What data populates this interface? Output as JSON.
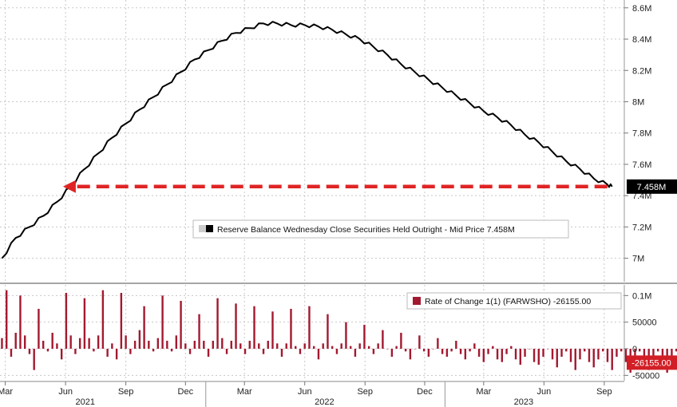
{
  "chart_data": [
    {
      "type": "line",
      "legend": {
        "label": "Reserve Balance Wednesday Close Securities Held Outright - Mid Price 7.458M",
        "placement": "center-bottom"
      },
      "last_value_tag": "7.458M",
      "y_ticks": [
        "7M",
        "7.2M",
        "7.4M",
        "7.6M",
        "7.8M",
        "8M",
        "8.2M",
        "8.4M",
        "8.6M"
      ],
      "ylim": [
        6.85,
        8.65
      ],
      "y_unit": "millions",
      "grid": true,
      "annotation": {
        "type": "dashed-arrow",
        "color": "#e02424",
        "level": 7.458,
        "from": "2023-09-13",
        "to": "2021-06-02"
      },
      "series": [
        {
          "color": "#000000",
          "x": [
            "2021-02-24",
            "2021-03-17",
            "2021-04-07",
            "2021-04-28",
            "2021-05-19",
            "2021-06-09",
            "2021-06-30",
            "2021-07-21",
            "2021-08-11",
            "2021-09-01",
            "2021-09-22",
            "2021-10-13",
            "2021-11-03",
            "2021-11-24",
            "2021-12-15",
            "2022-01-05",
            "2022-01-26",
            "2022-02-16",
            "2022-03-09",
            "2022-03-30",
            "2022-04-20",
            "2022-05-11",
            "2022-06-01",
            "2022-06-22",
            "2022-07-13",
            "2022-08-03",
            "2022-08-24",
            "2022-09-14",
            "2022-10-05",
            "2022-10-26",
            "2022-11-16",
            "2022-12-07",
            "2022-12-28",
            "2023-01-18",
            "2023-02-08",
            "2023-03-01",
            "2023-03-22",
            "2023-04-12",
            "2023-05-03",
            "2023-05-24",
            "2023-06-14",
            "2023-07-05",
            "2023-07-26",
            "2023-08-16",
            "2023-09-06",
            "2023-09-13"
          ],
          "y": [
            7.0,
            7.13,
            7.2,
            7.27,
            7.36,
            7.46,
            7.57,
            7.67,
            7.77,
            7.86,
            7.95,
            8.03,
            8.11,
            8.19,
            8.27,
            8.33,
            8.39,
            8.44,
            8.47,
            8.5,
            8.5,
            8.49,
            8.49,
            8.48,
            8.46,
            8.43,
            8.4,
            8.35,
            8.3,
            8.24,
            8.19,
            8.14,
            8.09,
            8.04,
            7.99,
            7.94,
            7.9,
            7.85,
            7.79,
            7.74,
            7.68,
            7.62,
            7.57,
            7.51,
            7.47,
            7.458
          ]
        }
      ]
    },
    {
      "type": "bar",
      "legend": {
        "label": "Rate of Change 1(1) (FARWSHO) -26155.00",
        "placement": "top-right"
      },
      "last_value_tag": "-26155.00",
      "y_ticks": [
        "0.1M",
        "50000",
        "0",
        "-50000"
      ],
      "ylim": [
        -60000,
        120000
      ],
      "grid": true,
      "series": [
        {
          "color": "#a3192f",
          "start": "2021-02-24",
          "interval_days": 7,
          "values": [
            20000,
            110000,
            -15000,
            30000,
            100000,
            25000,
            -10000,
            -40000,
            75000,
            15000,
            -5000,
            30000,
            10000,
            -20000,
            105000,
            25000,
            -10000,
            20000,
            95000,
            20000,
            -5000,
            25000,
            110000,
            -15000,
            10000,
            -20000,
            105000,
            25000,
            -10000,
            15000,
            35000,
            80000,
            15000,
            -5000,
            20000,
            100000,
            15000,
            -5000,
            25000,
            90000,
            10000,
            -10000,
            15000,
            65000,
            15000,
            -15000,
            15000,
            95000,
            20000,
            -10000,
            15000,
            85000,
            10000,
            -10000,
            15000,
            80000,
            10000,
            -10000,
            15000,
            70000,
            10000,
            -15000,
            10000,
            75000,
            5000,
            -10000,
            10000,
            80000,
            5000,
            -20000,
            10000,
            65000,
            5000,
            -10000,
            10000,
            50000,
            5000,
            -15000,
            10000,
            45000,
            5000,
            -10000,
            10000,
            35000,
            0,
            -15000,
            5000,
            30000,
            -5000,
            -20000,
            0,
            25000,
            -5000,
            -15000,
            0,
            20000,
            -10000,
            -15000,
            -5000,
            15000,
            -10000,
            -20000,
            -5000,
            10000,
            -15000,
            -25000,
            -10000,
            5000,
            -20000,
            -25000,
            -10000,
            5000,
            -20000,
            -30000,
            -15000,
            0,
            -25000,
            -30000,
            -15000,
            0,
            -20000,
            -35000,
            -15000,
            -5000,
            -25000,
            -40000,
            -20000,
            -5000,
            -25000,
            -35000,
            -20000,
            -5000,
            -25000,
            -40000,
            -15000,
            -5000,
            -25000,
            -45000,
            -20000,
            -5000,
            -25000,
            -40000,
            -20000,
            -5000,
            -25000,
            -45000,
            -20000,
            -5000,
            -26155
          ]
        }
      ]
    }
  ],
  "x_axis": {
    "month_labels": [
      {
        "label": "Mar",
        "date": "2021-03-01"
      },
      {
        "label": "Jun",
        "date": "2021-06-01"
      },
      {
        "label": "Sep",
        "date": "2021-09-01"
      },
      {
        "label": "Dec",
        "date": "2021-12-01"
      },
      {
        "label": "Mar",
        "date": "2022-03-01"
      },
      {
        "label": "Jun",
        "date": "2022-06-01"
      },
      {
        "label": "Sep",
        "date": "2022-09-01"
      },
      {
        "label": "Dec",
        "date": "2022-12-01"
      },
      {
        "label": "Mar",
        "date": "2023-03-01"
      },
      {
        "label": "Jun",
        "date": "2023-06-01"
      },
      {
        "label": "Sep",
        "date": "2023-09-01"
      }
    ],
    "year_labels": [
      {
        "label": "2021",
        "date": "2021-07-01"
      },
      {
        "label": "2022",
        "date": "2022-07-01"
      },
      {
        "label": "2023",
        "date": "2023-05-01"
      }
    ],
    "year_boundaries": [
      "2022-01-01",
      "2023-01-01"
    ]
  },
  "colors": {
    "background": "#ffffff",
    "grid": "#c8c8c8",
    "line": "#000000",
    "bars": "#a3192f",
    "arrow": "#e02424",
    "tag_top": "#000000",
    "tag_bottom": "#d21f26"
  }
}
